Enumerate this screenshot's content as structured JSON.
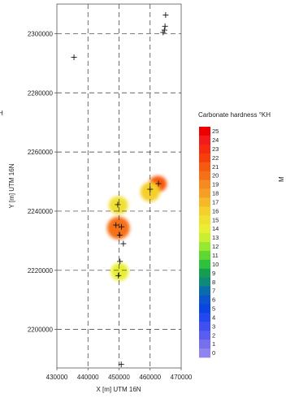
{
  "chart_data": {
    "type": "scatter",
    "title": "",
    "xlabel": "X [m] UTM 16N",
    "ylabel": "Y [m] UTM 16N",
    "xlim": [
      430000,
      470000
    ],
    "ylim": [
      2187000,
      2310000
    ],
    "xticks": [
      430000,
      440000,
      450000,
      460000,
      470000
    ],
    "xtick_labels": [
      "430000",
      "440000",
      "450000",
      "460000",
      "470000"
    ],
    "yticks": [
      2200000,
      2220000,
      2240000,
      2260000,
      2280000,
      2300000
    ],
    "ytick_labels": [
      "2200000",
      "2220000",
      "2240000",
      "2260000",
      "2280000",
      "2300000"
    ],
    "grid": "dashed",
    "sample_points": [
      {
        "x": 465000,
        "y": 2306300
      },
      {
        "x": 464800,
        "y": 2302500
      },
      {
        "x": 464600,
        "y": 2301200
      },
      {
        "x": 464200,
        "y": 2300400
      },
      {
        "x": 435500,
        "y": 2292000
      },
      {
        "x": 462700,
        "y": 2249300
      },
      {
        "x": 460000,
        "y": 2247400
      },
      {
        "x": 449600,
        "y": 2242200
      },
      {
        "x": 449000,
        "y": 2235300
      },
      {
        "x": 450800,
        "y": 2234700
      },
      {
        "x": 450200,
        "y": 2231900
      },
      {
        "x": 451400,
        "y": 2229000
      },
      {
        "x": 450300,
        "y": 2223000
      },
      {
        "x": 449800,
        "y": 2218200
      },
      {
        "x": 450700,
        "y": 2188200
      }
    ],
    "interpolated_zones": [
      {
        "center": [
          462500,
          2249200
        ],
        "value": 21
      },
      {
        "center": [
          460000,
          2246500
        ],
        "value": 16
      },
      {
        "center": [
          449800,
          2242000
        ],
        "value": 15
      },
      {
        "center": [
          449800,
          2234300
        ],
        "value": 20
      },
      {
        "center": [
          450200,
          2219500
        ],
        "value": 14
      }
    ],
    "colorbar": {
      "title": "Carbonate hardness °KH",
      "labels": [
        "25",
        "24",
        "23",
        "22",
        "21",
        "20",
        "19",
        "18",
        "17",
        "16",
        "15",
        "14",
        "13",
        "12",
        "11",
        "10",
        "9",
        "8",
        "7",
        "6",
        "5",
        "4",
        "3",
        "2",
        "1",
        "0"
      ],
      "colors": [
        "#ee0000",
        "#f21a1a",
        "#f52a10",
        "#f53e0c",
        "#f55a10",
        "#f57018",
        "#f58a20",
        "#f5a024",
        "#f5b828",
        "#f5cf2c",
        "#f0e030",
        "#e8ef33",
        "#c8f030",
        "#96e830",
        "#5ed830",
        "#2ec23c",
        "#159e52",
        "#0d8a78",
        "#0a6cac",
        "#0a55cf",
        "#0a44e2",
        "#2448ef",
        "#4050f0",
        "#5a5ef0",
        "#7670ef",
        "#8e85ee"
      ]
    }
  },
  "cut_text": {
    "left": "H",
    "right": "M"
  }
}
